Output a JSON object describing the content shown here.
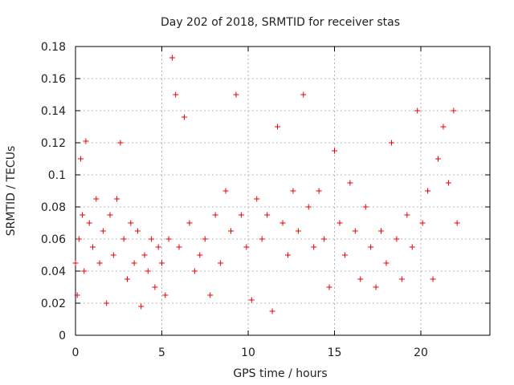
{
  "chart_data": {
    "type": "scatter",
    "title": "Day 202 of 2018, SRMTID for receiver stas",
    "xlabel": "GPS time / hours",
    "ylabel": "SRMTID / TECUs",
    "xlim": [
      0,
      24
    ],
    "ylim": [
      0,
      0.18
    ],
    "grid": true,
    "legend": "none",
    "marker": "plus",
    "color": "#ee0000",
    "x_ticks": [
      "0",
      "5",
      "10",
      "15",
      "20"
    ],
    "y_ticks": [
      "0",
      "0.02",
      "0.04",
      "0.06",
      "0.08",
      "0.1",
      "0.12",
      "0.14",
      "0.16",
      "0.18"
    ],
    "series": [
      {
        "x": [
          0.0,
          0.1,
          0.2,
          0.3,
          0.4,
          0.5,
          0.6,
          0.8,
          1.0,
          1.2,
          1.4,
          1.6,
          1.8,
          2.0,
          2.2,
          2.4,
          2.6,
          2.8,
          3.0,
          3.2,
          3.4,
          3.6,
          3.8,
          4.0,
          4.2,
          4.4,
          4.6,
          4.8,
          5.0,
          5.2,
          5.4,
          5.6,
          5.8,
          6.0,
          6.3,
          6.6,
          6.9,
          7.2,
          7.5,
          7.8,
          8.1,
          8.4,
          8.7,
          9.0,
          9.3,
          9.6,
          9.9,
          10.2,
          10.5,
          10.8,
          11.1,
          11.4,
          11.7,
          12.0,
          12.3,
          12.6,
          12.9,
          13.2,
          13.5,
          13.8,
          14.1,
          14.4,
          14.7,
          15.0,
          15.3,
          15.6,
          15.9,
          16.2,
          16.5,
          16.8,
          17.1,
          17.4,
          17.7,
          18.0,
          18.3,
          18.6,
          18.9,
          19.2,
          19.5,
          19.8,
          20.1,
          20.4,
          20.7,
          21.0,
          21.3,
          21.6,
          21.9,
          22.1
        ],
        "y": [
          0.045,
          0.025,
          0.06,
          0.11,
          0.075,
          0.04,
          0.121,
          0.07,
          0.055,
          0.085,
          0.045,
          0.065,
          0.02,
          0.075,
          0.05,
          0.085,
          0.12,
          0.06,
          0.035,
          0.07,
          0.045,
          0.065,
          0.018,
          0.05,
          0.04,
          0.06,
          0.03,
          0.055,
          0.045,
          0.025,
          0.06,
          0.173,
          0.15,
          0.055,
          0.136,
          0.07,
          0.04,
          0.05,
          0.06,
          0.025,
          0.075,
          0.045,
          0.09,
          0.065,
          0.15,
          0.075,
          0.055,
          0.022,
          0.085,
          0.06,
          0.075,
          0.015,
          0.13,
          0.07,
          0.05,
          0.09,
          0.065,
          0.15,
          0.08,
          0.055,
          0.09,
          0.06,
          0.03,
          0.115,
          0.07,
          0.05,
          0.095,
          0.065,
          0.035,
          0.08,
          0.055,
          0.03,
          0.065,
          0.045,
          0.12,
          0.06,
          0.035,
          0.075,
          0.055,
          0.14,
          0.07,
          0.09,
          0.035,
          0.11,
          0.13,
          0.095,
          0.14,
          0.07
        ]
      }
    ]
  }
}
